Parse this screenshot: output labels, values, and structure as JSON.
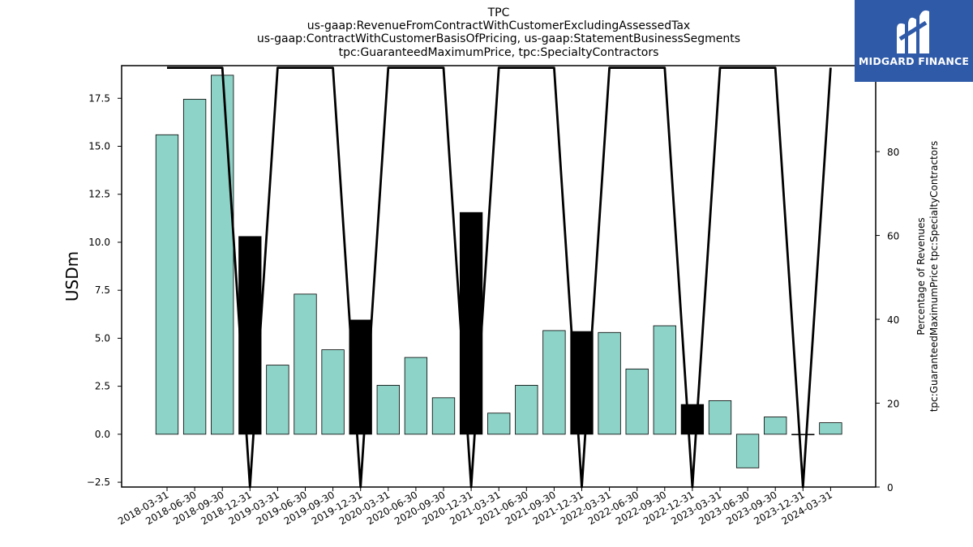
{
  "chart_data": {
    "type": "bar",
    "title": [
      "TPC",
      "us-gaap:RevenueFromContractWithCustomerExcludingAssessedTax",
      "us-gaap:ContractWithCustomerBasisOfPricing, us-gaap:StatementBusinessSegments",
      "tpc:GuaranteedMaximumPrice, tpc:SpecialtyContractors"
    ],
    "ylabel": "USDm",
    "y2label": [
      "Percentage of Revenues",
      "tpc:GuaranteedMaximumPrice tpc:SpecialtyContractors"
    ],
    "categories": [
      "2018-03-31",
      "2018-06-30",
      "2018-09-30",
      "2018-12-31",
      "2019-03-31",
      "2019-06-30",
      "2019-09-30",
      "2019-12-31",
      "2020-03-31",
      "2020-06-30",
      "2020-09-30",
      "2020-12-31",
      "2021-03-31",
      "2021-06-30",
      "2021-09-30",
      "2021-12-31",
      "2022-03-31",
      "2022-06-30",
      "2022-09-30",
      "2022-12-31",
      "2023-03-31",
      "2023-06-30",
      "2023-09-30",
      "2023-12-31",
      "2024-03-31"
    ],
    "series": [
      {
        "type": "bar",
        "axis": "left",
        "values": [
          15.6,
          17.45,
          18.7,
          10.3,
          3.6,
          7.3,
          4.4,
          5.95,
          2.55,
          4.0,
          1.9,
          11.55,
          1.1,
          2.55,
          5.4,
          5.35,
          5.3,
          3.4,
          5.65,
          1.55,
          1.75,
          -1.75,
          0.9,
          0.0,
          0.6
        ],
        "highlighted": [
          false,
          false,
          false,
          true,
          false,
          false,
          false,
          true,
          false,
          false,
          false,
          true,
          false,
          false,
          false,
          true,
          false,
          false,
          false,
          true,
          false,
          false,
          false,
          true,
          false
        ]
      },
      {
        "type": "line",
        "axis": "right",
        "values": [
          100,
          100,
          100,
          0,
          100,
          100,
          100,
          0,
          100,
          100,
          100,
          0,
          100,
          100,
          100,
          0,
          100,
          100,
          100,
          0,
          100,
          100,
          100,
          0,
          100
        ]
      }
    ],
    "ylim": [
      -2.75,
      19.2
    ],
    "y2lim": [
      0,
      100.5
    ],
    "yticks": [
      -2.5,
      0.0,
      2.5,
      5.0,
      7.5,
      10.0,
      12.5,
      15.0,
      17.5
    ],
    "ytick_labels": [
      "−2.5",
      "0.0",
      "2.5",
      "5.0",
      "7.5",
      "10.0",
      "12.5",
      "15.0",
      "17.5"
    ],
    "y2ticks": [
      0,
      20,
      40,
      60,
      80,
      100
    ],
    "colors": {
      "bar": "#8dd3c7",
      "bar_highlight": "#000000",
      "line": "#000000",
      "edge": "#000000"
    }
  },
  "logo": {
    "text": "MIDGARD FINANCE",
    "bg": "#2f5aa8",
    "fg": "#ffffff"
  }
}
